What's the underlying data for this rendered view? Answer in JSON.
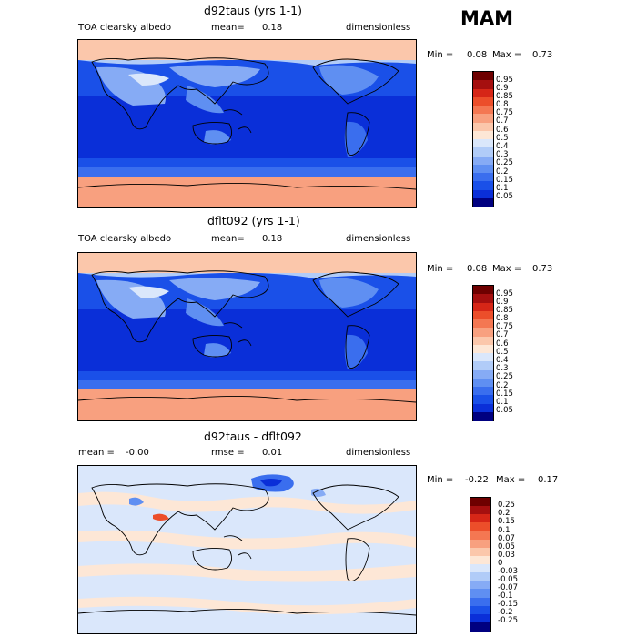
{
  "season": "MAM",
  "panels": [
    {
      "title": "d92taus (yrs 1-1)",
      "variable": "TOA clearsky albedo",
      "mean_label": "mean=",
      "mean_value": "0.18",
      "units": "dimensionless",
      "min_label": "Min =",
      "min_value": "0.08",
      "max_label": "Max =",
      "max_value": "0.73",
      "colorbar": [
        "0.95",
        "0.9",
        "0.85",
        "0.8",
        "0.75",
        "0.7",
        "0.6",
        "0.5",
        "0.4",
        "0.3",
        "0.25",
        "0.2",
        "0.15",
        "0.1",
        "0.05"
      ]
    },
    {
      "title": "dflt092 (yrs 1-1)",
      "variable": "TOA clearsky albedo",
      "mean_label": "mean=",
      "mean_value": "0.18",
      "units": "dimensionless",
      "min_label": "Min =",
      "min_value": "0.08",
      "max_label": "Max =",
      "max_value": "0.73",
      "colorbar": [
        "0.95",
        "0.9",
        "0.85",
        "0.8",
        "0.75",
        "0.7",
        "0.6",
        "0.5",
        "0.4",
        "0.3",
        "0.25",
        "0.2",
        "0.15",
        "0.1",
        "0.05"
      ]
    },
    {
      "title": "d92taus - dflt092",
      "mean_label": "mean =",
      "mean_value": "-0.00",
      "rmse_label": "rmse =",
      "rmse_value": "0.01",
      "units": "dimensionless",
      "min_label": "Min =",
      "min_value": "-0.22",
      "max_label": "Max =",
      "max_value": "0.17",
      "colorbar": [
        "0.25",
        "0.2",
        "0.15",
        "0.1",
        "0.07",
        "0.05",
        "0.03",
        "0",
        "-0.03",
        "-0.05",
        "-0.07",
        "-0.1",
        "-0.15",
        "-0.2",
        "-0.25"
      ]
    }
  ],
  "chart_data": [
    {
      "type": "heatmap",
      "title": "d92taus (yrs 1-1)",
      "variable": "TOA clearsky albedo",
      "units": "dimensionless",
      "mean": 0.18,
      "min": 0.08,
      "max": 0.73,
      "contour_levels": [
        0.05,
        0.1,
        0.15,
        0.2,
        0.25,
        0.3,
        0.4,
        0.5,
        0.6,
        0.7,
        0.75,
        0.8,
        0.85,
        0.9,
        0.95
      ],
      "colors": [
        "#000080",
        "#0a2fd8",
        "#1a50e8",
        "#3a6eee",
        "#5f8ff2",
        "#86abf5",
        "#b1ccf8",
        "#dae7fb",
        "#fde7d6",
        "#fbc7ab",
        "#f8a07f",
        "#f47752",
        "#ec4e2a",
        "#d62617",
        "#a50f0f",
        "#6e0000"
      ]
    },
    {
      "type": "heatmap",
      "title": "dflt092 (yrs 1-1)",
      "variable": "TOA clearsky albedo",
      "units": "dimensionless",
      "mean": 0.18,
      "min": 0.08,
      "max": 0.73,
      "contour_levels": [
        0.05,
        0.1,
        0.15,
        0.2,
        0.25,
        0.3,
        0.4,
        0.5,
        0.6,
        0.7,
        0.75,
        0.8,
        0.85,
        0.9,
        0.95
      ],
      "colors": [
        "#000080",
        "#0a2fd8",
        "#1a50e8",
        "#3a6eee",
        "#5f8ff2",
        "#86abf5",
        "#b1ccf8",
        "#dae7fb",
        "#fde7d6",
        "#fbc7ab",
        "#f8a07f",
        "#f47752",
        "#ec4e2a",
        "#d62617",
        "#a50f0f",
        "#6e0000"
      ]
    },
    {
      "type": "heatmap",
      "title": "d92taus - dflt092",
      "units": "dimensionless",
      "mean": -0.0,
      "rmse": 0.01,
      "min": -0.22,
      "max": 0.17,
      "contour_levels": [
        -0.25,
        -0.2,
        -0.15,
        -0.1,
        -0.07,
        -0.05,
        -0.03,
        0,
        0.03,
        0.05,
        0.07,
        0.1,
        0.15,
        0.2,
        0.25
      ],
      "colors": [
        "#000080",
        "#0a2fd8",
        "#1a50e8",
        "#3a6eee",
        "#5f8ff2",
        "#86abf5",
        "#b1ccf8",
        "#dae7fb",
        "#fde7d6",
        "#fbc7ab",
        "#f8a07f",
        "#f47752",
        "#ec4e2a",
        "#d62617",
        "#a50f0f",
        "#6e0000"
      ]
    }
  ]
}
